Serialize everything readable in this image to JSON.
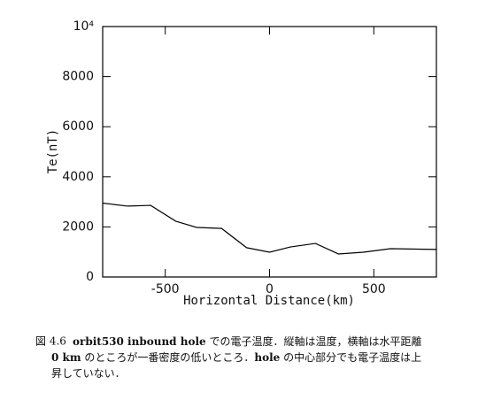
{
  "chart_data": {
    "type": "line",
    "xlabel": "Horizontal Distance(km)",
    "ylabel": "Te(nT)",
    "x": [
      -800,
      -680,
      -570,
      -450,
      -350,
      -230,
      -110,
      0,
      100,
      220,
      330,
      450,
      580,
      800
    ],
    "values": [
      2950,
      2830,
      2860,
      2230,
      1980,
      1940,
      1170,
      990,
      1200,
      1340,
      920,
      990,
      1130,
      1100
    ],
    "color": "#000000",
    "xlim": [
      -800,
      800
    ],
    "xticks": [
      -500,
      0,
      500
    ],
    "ylim": [
      0,
      10000
    ],
    "yticks": [
      0,
      2000,
      4000,
      6000,
      8000,
      {
        "value": 10000,
        "label": "10⁴"
      }
    ]
  },
  "caption": {
    "label": "図 4.6",
    "lines": [
      [
        {
          "text": "orbit530 inbound hole",
          "bold": true
        },
        {
          "text": " での電子温度．縦軸は温度，横軸は水平距離",
          "bold": false
        }
      ],
      [
        {
          "text": "0 km",
          "bold": true
        },
        {
          "text": " のところが一番密度の低いところ．",
          "bold": false
        },
        {
          "text": "hole",
          "bold": true
        },
        {
          "text": " の中心部分でも電子温度は上",
          "bold": false
        }
      ],
      [
        {
          "text": "昇していない．",
          "bold": false
        }
      ]
    ]
  }
}
